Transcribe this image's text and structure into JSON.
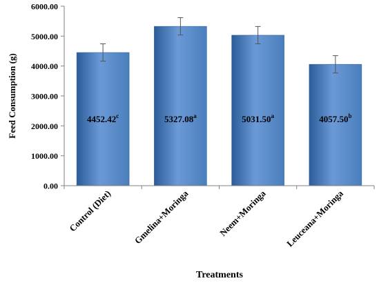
{
  "chart_data": {
    "type": "bar",
    "xlabel": "Treatments",
    "ylabel": "Feed Consumption (g)",
    "ylim": [
      0,
      6000
    ],
    "yticks": [
      0,
      1000,
      2000,
      3000,
      4000,
      5000,
      6000
    ],
    "ytick_labels": [
      "0.00",
      "1000.00",
      "2000.00",
      "3000.00",
      "4000.00",
      "5000.00",
      "6000.00"
    ],
    "grid": false,
    "categories": [
      "Control (Diet)",
      "Gmelina+Moringa",
      "Neem+Moringa",
      "Leuceana+Moringa"
    ],
    "values": [
      4452.42,
      5327.08,
      5031.5,
      4057.5
    ],
    "errors": [
      290,
      290,
      290,
      290
    ],
    "value_labels": [
      "4452.42",
      "5327.08",
      "5031.50",
      "4057.50"
    ],
    "superscripts": [
      "c",
      "a",
      "a",
      "b"
    ],
    "bar_color": "#4a7ebb",
    "bar_dark_color": "#2c5d98",
    "bar_light_color": "#6b9ad6"
  }
}
